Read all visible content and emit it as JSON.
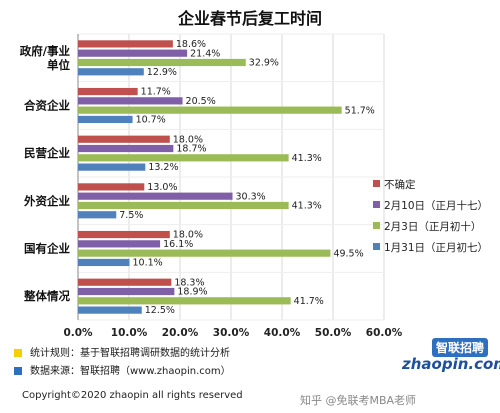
{
  "chart_data": {
    "type": "bar",
    "orientation": "horizontal",
    "title": "企业春节后复工时间",
    "categories": [
      "政府/事业\n单位",
      "合资企业",
      "民营企业",
      "外资企业",
      "国有企业",
      "整体情况"
    ],
    "series": [
      {
        "name": "不确定",
        "color": "#c0504d",
        "values": [
          18.6,
          11.7,
          18.0,
          13.0,
          18.0,
          18.3
        ]
      },
      {
        "name": "2月10日（正月十七）",
        "color": "#7f5fa8",
        "values": [
          21.4,
          20.5,
          18.7,
          30.3,
          16.1,
          18.9
        ]
      },
      {
        "name": "2月3日（正月初十）",
        "color": "#9bbb59",
        "values": [
          32.9,
          51.7,
          41.3,
          41.3,
          49.5,
          41.7
        ]
      },
      {
        "name": "1月31日（正月初七）",
        "color": "#4f81bd",
        "values": [
          12.9,
          10.7,
          13.2,
          7.5,
          10.1,
          12.5
        ]
      }
    ],
    "value_labels": [
      [
        "18.6%",
        "21.4%",
        "32.9%",
        "12.9%"
      ],
      [
        "11.7%",
        "20.5%",
        "51.7%",
        "10.7%"
      ],
      [
        "18.0%",
        "18.7%",
        "41.3%",
        "13.2%"
      ],
      [
        "13.0%",
        "30.3%",
        "41.3%",
        "7.5%"
      ],
      [
        "18.0%",
        "16.1%",
        "49.5%",
        "10.1%"
      ],
      [
        "18.3%",
        "18.9%",
        "41.7%",
        "12.5%"
      ]
    ],
    "xlim": [
      0,
      60
    ],
    "xticks": [
      "0.0%",
      "10.0%",
      "20.0%",
      "30.0%",
      "40.0%",
      "50.0%",
      "60.0%"
    ],
    "grid": true,
    "legend_position": "right"
  },
  "notes": [
    {
      "text": "统计规则：基于智联招聘调研数据的统计分析",
      "color": "#f5d000"
    },
    {
      "text": "数据来源：智联招聘（www.zhaopin.com）",
      "color": "#2f6fc0"
    }
  ],
  "copyright": "Copyright©2020 zhaopin all rights reserved",
  "logo": {
    "cn": "智联招聘",
    "en": "zhaopin.com"
  },
  "watermark": "知乎 @免联考MBA老师"
}
